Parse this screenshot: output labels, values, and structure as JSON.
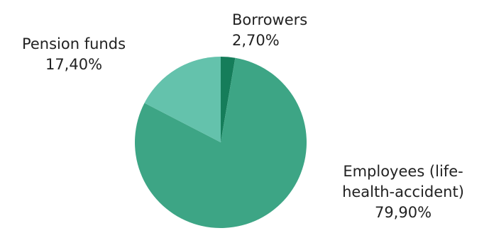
{
  "chart_data": {
    "type": "pie",
    "title": "",
    "slices": [
      {
        "label": "Borrowers",
        "value": 2.7,
        "value_text": "2,70%",
        "color": "#157d5a"
      },
      {
        "label": "Employees (life-health-accident)",
        "label_lines": [
          "Employees (life-",
          "health-accident)"
        ],
        "value": 79.9,
        "value_text": "79,90%",
        "color": "#3da585"
      },
      {
        "label": "Pension funds",
        "value": 17.4,
        "value_text": "17,40%",
        "color": "#64c2ac"
      }
    ],
    "start_angle": "12 o'clock",
    "direction": "clockwise",
    "legend": "none",
    "label_style": "outside labels"
  }
}
